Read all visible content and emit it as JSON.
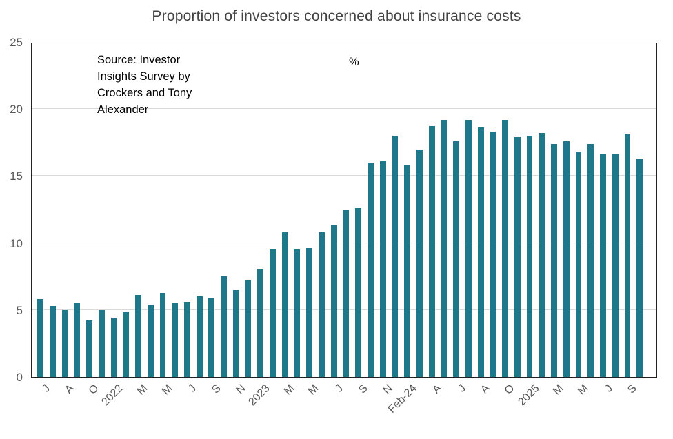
{
  "chart_data": {
    "type": "bar",
    "title": "Proportion of investors concerned about insurance costs",
    "y_axis_label": "%",
    "source_lines": [
      "Source: Investor",
      "Insights Survey by",
      "Crockers and Tony",
      "Alexander"
    ],
    "bar_color": "#1f7889",
    "grid": true,
    "legend_position": "none",
    "ylim": [
      0,
      25
    ],
    "y_ticks": [
      0,
      5,
      10,
      15,
      20,
      25
    ],
    "x_tick_labels": [
      "J",
      "A",
      "O",
      "2022",
      "M",
      "M",
      "J",
      "S",
      "N",
      "2023",
      "M",
      "M",
      "J",
      "S",
      "N",
      "Feb-24",
      "A",
      "J",
      "A",
      "O",
      "2025",
      "M",
      "M",
      "J",
      "S"
    ],
    "x_label_every_n_bars": 2,
    "values": [
      5.8,
      5.3,
      5.0,
      5.5,
      4.2,
      5.0,
      4.4,
      4.9,
      6.1,
      5.4,
      6.3,
      5.5,
      5.6,
      6.0,
      5.9,
      7.5,
      6.5,
      7.2,
      8.0,
      9.5,
      10.8,
      9.5,
      9.6,
      10.8,
      11.3,
      12.5,
      12.6,
      16.0,
      16.1,
      18.0,
      15.8,
      17.0,
      18.7,
      19.2,
      17.6,
      19.2,
      18.6,
      18.3,
      19.2,
      17.9,
      18.0,
      18.2,
      17.4,
      17.6,
      16.8,
      17.4,
      16.6,
      16.6,
      18.1,
      16.3
    ]
  }
}
